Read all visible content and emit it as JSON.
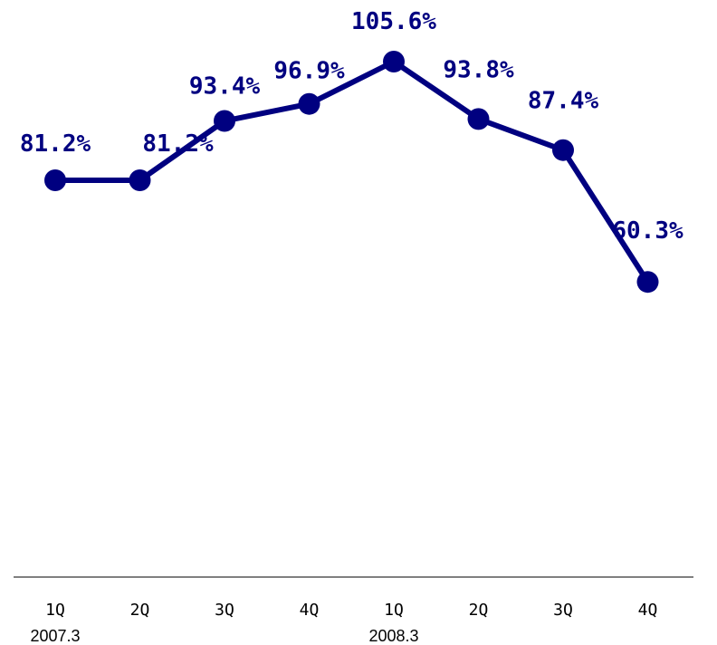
{
  "chart_data": {
    "type": "line",
    "title": "",
    "xlabel": "",
    "ylabel": "",
    "categories": [
      "1Q",
      "2Q",
      "3Q",
      "4Q",
      "1Q",
      "2Q",
      "3Q",
      "4Q"
    ],
    "group_labels": [
      {
        "text": "2007.3",
        "category_index": 0
      },
      {
        "text": "2008.3",
        "category_index": 4
      }
    ],
    "series": [
      {
        "values": [
          81.2,
          81.2,
          93.4,
          96.9,
          105.6,
          93.8,
          87.4,
          60.3
        ],
        "labels": [
          "81.2%",
          "81.2%",
          "93.4%",
          "96.9%",
          "105.6%",
          "93.8%",
          "87.4%",
          "60.3%"
        ],
        "color": "#000080"
      }
    ],
    "ylim": [
      0,
      110
    ],
    "grid": false,
    "legend": "none"
  }
}
